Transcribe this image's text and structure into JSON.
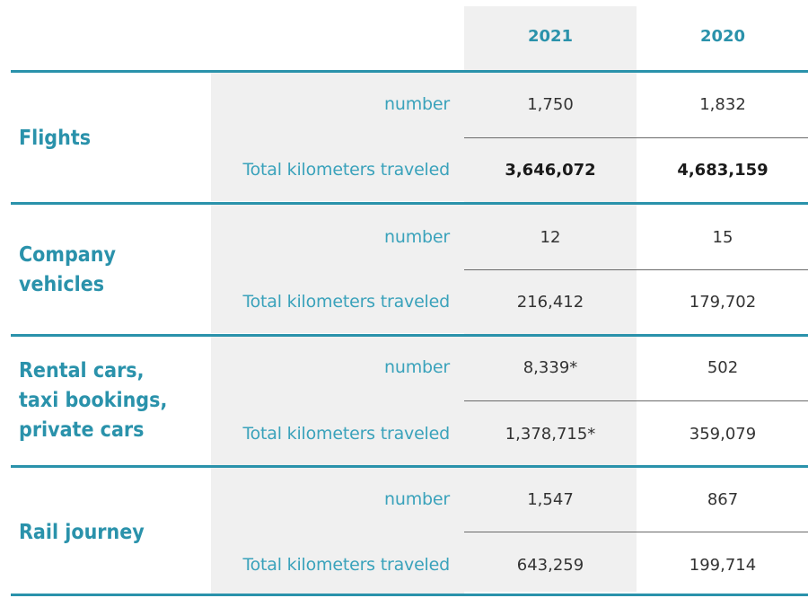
{
  "headers": {
    "y2021": "2021",
    "y2020": "2020"
  },
  "rows": [
    {
      "category": "Flights",
      "number_label": "number",
      "km_label": "Total kilometers traveled",
      "number_2021": "1,750",
      "number_2020": "1,832",
      "km_2021": "3,646,072",
      "km_2020": "4,683,159"
    },
    {
      "category_line1": "Company",
      "category_line2": "vehicles",
      "number_label": "number",
      "km_label": "Total kilometers traveled",
      "number_2021": "12",
      "number_2020": "15",
      "km_2021": "216,412",
      "km_2020": "179,702"
    },
    {
      "category_line1": "Rental cars,",
      "category_line2": "taxi bookings,",
      "category_line3": "private cars",
      "number_label": "number",
      "km_label": "Total kilometers traveled",
      "number_2021": "8,339*",
      "number_2020": "502",
      "km_2021": "1,378,715*",
      "km_2020": "359,079"
    },
    {
      "category": "Rail journey",
      "number_label": "number",
      "km_label": "Total kilometers traveled",
      "number_2021": "1,547",
      "number_2020": "867",
      "km_2021": "643,259",
      "km_2020": "199,714"
    }
  ]
}
